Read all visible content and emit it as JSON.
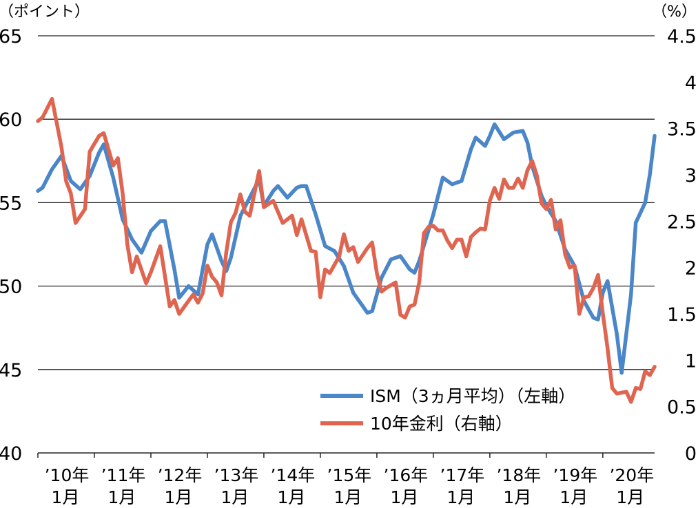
{
  "chart_data": {
    "type": "line",
    "y_left_unit": "（ポイント）",
    "y_right_unit": "（%）",
    "y_left": {
      "min": 40,
      "max": 65,
      "ticks": [
        "40",
        "45",
        "50",
        "55",
        "60",
        "65"
      ]
    },
    "y_right": {
      "min": 0,
      "max": 4.5,
      "ticks": [
        "0",
        "0.5",
        "1",
        "1.5",
        "2",
        "2.5",
        "3",
        "3.5",
        "4",
        "4.5"
      ]
    },
    "x_ticks": [
      {
        "line1": "’10年",
        "line2": "1月"
      },
      {
        "line1": "’11年",
        "line2": "1月"
      },
      {
        "line1": "’12年",
        "line2": "1月"
      },
      {
        "line1": "’13年",
        "line2": "1月"
      },
      {
        "line1": "’14年",
        "line2": "1月"
      },
      {
        "line1": "’15年",
        "line2": "1月"
      },
      {
        "line1": "’16年",
        "line2": "1月"
      },
      {
        "line1": "’17年",
        "line2": "1月"
      },
      {
        "line1": "’18年",
        "line2": "1月"
      },
      {
        "line1": "’19年",
        "line2": "1月"
      },
      {
        "line1": "’20年",
        "line2": "1月"
      }
    ],
    "x_range": [
      "2010-01",
      "2020-12"
    ],
    "grid": "horizontal",
    "legend_position": "bottom-right",
    "series": [
      {
        "name": "ISM（3ヵ月平均）（左軸）",
        "axis": "left",
        "color": "#4a86c8",
        "points": [
          [
            "2010-01",
            55.7
          ],
          [
            "2010-02",
            55.9
          ],
          [
            "2010-04",
            57.0
          ],
          [
            "2010-06",
            57.8
          ],
          [
            "2010-08",
            56.3
          ],
          [
            "2010-10",
            55.8
          ],
          [
            "2010-12",
            56.6
          ],
          [
            "2011-02",
            58.0
          ],
          [
            "2011-03",
            58.5
          ],
          [
            "2011-05",
            56.5
          ],
          [
            "2011-07",
            54.0
          ],
          [
            "2011-09",
            52.8
          ],
          [
            "2011-11",
            52.0
          ],
          [
            "2012-01",
            53.3
          ],
          [
            "2012-03",
            53.9
          ],
          [
            "2012-04",
            53.9
          ],
          [
            "2012-06",
            51.0
          ],
          [
            "2012-07",
            49.3
          ],
          [
            "2012-09",
            50.0
          ],
          [
            "2012-11",
            49.5
          ],
          [
            "2013-01",
            52.5
          ],
          [
            "2013-02",
            53.1
          ],
          [
            "2013-04",
            51.5
          ],
          [
            "2013-05",
            50.9
          ],
          [
            "2013-06",
            51.7
          ],
          [
            "2013-08",
            54.2
          ],
          [
            "2013-10",
            55.3
          ],
          [
            "2013-12",
            56.4
          ],
          [
            "2014-01",
            54.8
          ],
          [
            "2014-03",
            55.7
          ],
          [
            "2014-04",
            56.0
          ],
          [
            "2014-06",
            55.3
          ],
          [
            "2014-08",
            55.9
          ],
          [
            "2014-09",
            56.0
          ],
          [
            "2014-10",
            56.0
          ],
          [
            "2014-12",
            54.3
          ],
          [
            "2015-02",
            52.4
          ],
          [
            "2015-04",
            52.1
          ],
          [
            "2015-06",
            51.2
          ],
          [
            "2015-08",
            49.6
          ],
          [
            "2015-10",
            48.8
          ],
          [
            "2015-11",
            48.4
          ],
          [
            "2015-12",
            48.5
          ],
          [
            "2016-02",
            50.5
          ],
          [
            "2016-04",
            51.6
          ],
          [
            "2016-06",
            51.8
          ],
          [
            "2016-08",
            51.0
          ],
          [
            "2016-09",
            50.8
          ],
          [
            "2016-10",
            51.5
          ],
          [
            "2017-01",
            54.3
          ],
          [
            "2017-03",
            56.5
          ],
          [
            "2017-05",
            56.1
          ],
          [
            "2017-07",
            56.3
          ],
          [
            "2017-09",
            58.2
          ],
          [
            "2017-10",
            58.9
          ],
          [
            "2017-12",
            58.4
          ],
          [
            "2018-01",
            59.0
          ],
          [
            "2018-02",
            59.7
          ],
          [
            "2018-04",
            58.8
          ],
          [
            "2018-06",
            59.2
          ],
          [
            "2018-08",
            59.3
          ],
          [
            "2018-09",
            58.6
          ],
          [
            "2018-10",
            57.2
          ],
          [
            "2018-12",
            55.4
          ],
          [
            "2019-01",
            54.8
          ],
          [
            "2019-03",
            53.9
          ],
          [
            "2019-05",
            52.2
          ],
          [
            "2019-07",
            51.2
          ],
          [
            "2019-09",
            49.1
          ],
          [
            "2019-11",
            48.1
          ],
          [
            "2019-12",
            48.0
          ],
          [
            "2020-01",
            49.6
          ],
          [
            "2020-02",
            50.3
          ],
          [
            "2020-04",
            47.1
          ],
          [
            "2020-05",
            44.8
          ],
          [
            "2020-07",
            49.5
          ],
          [
            "2020-08",
            53.8
          ],
          [
            "2020-10",
            55.0
          ],
          [
            "2020-11",
            56.7
          ],
          [
            "2020-12",
            59.0
          ]
        ]
      },
      {
        "name": "10年金利（右軸）",
        "axis": "right",
        "color": "#e06550",
        "points": [
          [
            "2010-01",
            3.58
          ],
          [
            "2010-02",
            3.62
          ],
          [
            "2010-04",
            3.82
          ],
          [
            "2010-06",
            3.3
          ],
          [
            "2010-07",
            2.93
          ],
          [
            "2010-08",
            2.8
          ],
          [
            "2010-09",
            2.48
          ],
          [
            "2010-11",
            2.63
          ],
          [
            "2010-12",
            3.25
          ],
          [
            "2011-02",
            3.42
          ],
          [
            "2011-03",
            3.45
          ],
          [
            "2011-05",
            3.1
          ],
          [
            "2011-06",
            3.18
          ],
          [
            "2011-07",
            2.8
          ],
          [
            "2011-08",
            2.25
          ],
          [
            "2011-09",
            1.95
          ],
          [
            "2011-10",
            2.12
          ],
          [
            "2011-12",
            1.83
          ],
          [
            "2012-01",
            1.95
          ],
          [
            "2012-03",
            2.23
          ],
          [
            "2012-05",
            1.58
          ],
          [
            "2012-06",
            1.65
          ],
          [
            "2012-07",
            1.5
          ],
          [
            "2012-09",
            1.64
          ],
          [
            "2012-10",
            1.71
          ],
          [
            "2012-11",
            1.62
          ],
          [
            "2012-12",
            1.72
          ],
          [
            "2013-01",
            2.02
          ],
          [
            "2013-02",
            1.9
          ],
          [
            "2013-03",
            1.84
          ],
          [
            "2013-04",
            1.7
          ],
          [
            "2013-05",
            2.16
          ],
          [
            "2013-06",
            2.49
          ],
          [
            "2013-07",
            2.59
          ],
          [
            "2013-08",
            2.79
          ],
          [
            "2013-09",
            2.6
          ],
          [
            "2013-10",
            2.56
          ],
          [
            "2013-12",
            3.04
          ],
          [
            "2014-01",
            2.65
          ],
          [
            "2014-03",
            2.72
          ],
          [
            "2014-05",
            2.48
          ],
          [
            "2014-07",
            2.56
          ],
          [
            "2014-08",
            2.35
          ],
          [
            "2014-09",
            2.52
          ],
          [
            "2014-10",
            2.35
          ],
          [
            "2014-11",
            2.18
          ],
          [
            "2014-12",
            2.17
          ],
          [
            "2015-01",
            1.68
          ],
          [
            "2015-02",
            1.98
          ],
          [
            "2015-03",
            1.94
          ],
          [
            "2015-05",
            2.12
          ],
          [
            "2015-06",
            2.36
          ],
          [
            "2015-07",
            2.18
          ],
          [
            "2015-08",
            2.22
          ],
          [
            "2015-09",
            2.06
          ],
          [
            "2015-11",
            2.21
          ],
          [
            "2015-12",
            2.27
          ],
          [
            "2016-01",
            1.94
          ],
          [
            "2016-02",
            1.74
          ],
          [
            "2016-03",
            1.78
          ],
          [
            "2016-05",
            1.84
          ],
          [
            "2016-06",
            1.49
          ],
          [
            "2016-07",
            1.46
          ],
          [
            "2016-08",
            1.58
          ],
          [
            "2016-09",
            1.6
          ],
          [
            "2016-10",
            1.84
          ],
          [
            "2016-11",
            2.37
          ],
          [
            "2016-12",
            2.44
          ],
          [
            "2017-01",
            2.45
          ],
          [
            "2017-02",
            2.4
          ],
          [
            "2017-03",
            2.4
          ],
          [
            "2017-04",
            2.29
          ],
          [
            "2017-05",
            2.21
          ],
          [
            "2017-06",
            2.3
          ],
          [
            "2017-07",
            2.3
          ],
          [
            "2017-08",
            2.12
          ],
          [
            "2017-09",
            2.33
          ],
          [
            "2017-10",
            2.38
          ],
          [
            "2017-11",
            2.42
          ],
          [
            "2017-12",
            2.41
          ],
          [
            "2018-01",
            2.72
          ],
          [
            "2018-02",
            2.86
          ],
          [
            "2018-03",
            2.74
          ],
          [
            "2018-04",
            2.95
          ],
          [
            "2018-05",
            2.86
          ],
          [
            "2018-06",
            2.86
          ],
          [
            "2018-07",
            2.96
          ],
          [
            "2018-08",
            2.86
          ],
          [
            "2018-09",
            3.05
          ],
          [
            "2018-10",
            3.15
          ],
          [
            "2018-11",
            2.99
          ],
          [
            "2018-12",
            2.69
          ],
          [
            "2019-01",
            2.63
          ],
          [
            "2019-02",
            2.73
          ],
          [
            "2019-03",
            2.41
          ],
          [
            "2019-04",
            2.51
          ],
          [
            "2019-05",
            2.14
          ],
          [
            "2019-06",
            2.0
          ],
          [
            "2019-07",
            2.02
          ],
          [
            "2019-08",
            1.5
          ],
          [
            "2019-09",
            1.68
          ],
          [
            "2019-10",
            1.69
          ],
          [
            "2019-11",
            1.78
          ],
          [
            "2019-12",
            1.92
          ],
          [
            "2020-01",
            1.51
          ],
          [
            "2020-02",
            1.13
          ],
          [
            "2020-03",
            0.7
          ],
          [
            "2020-04",
            0.64
          ],
          [
            "2020-05",
            0.65
          ],
          [
            "2020-06",
            0.66
          ],
          [
            "2020-07",
            0.55
          ],
          [
            "2020-08",
            0.7
          ],
          [
            "2020-09",
            0.69
          ],
          [
            "2020-10",
            0.88
          ],
          [
            "2020-11",
            0.84
          ],
          [
            "2020-12",
            0.93
          ]
        ]
      }
    ]
  }
}
